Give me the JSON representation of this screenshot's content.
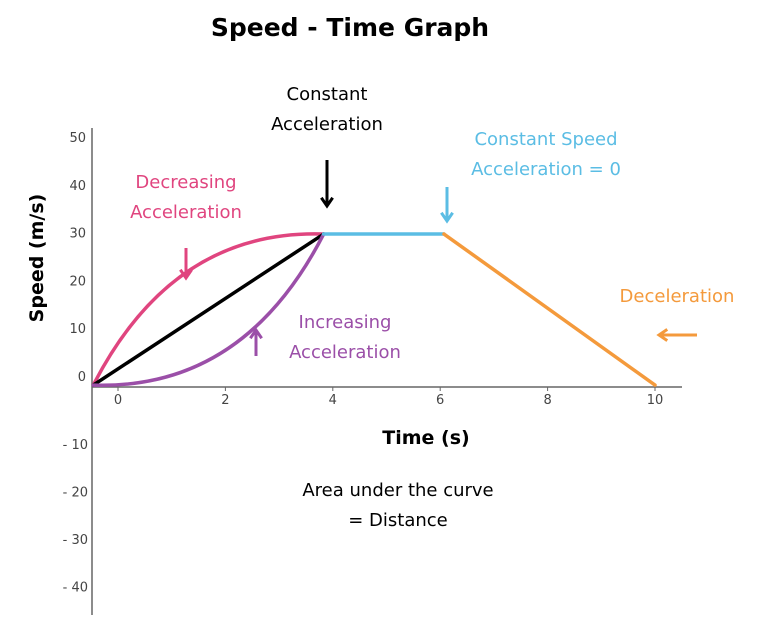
{
  "chart_data": {
    "type": "line",
    "title": "Speed - Time Graph",
    "xlabel": "Time (s)",
    "ylabel": "Speed (m/s)",
    "xlim": [
      -0.5,
      10.5
    ],
    "ylim": [
      -2,
      52
    ],
    "x_ticks": [
      "0",
      "2",
      "4",
      "6",
      "8",
      "10"
    ],
    "x_tick_values": [
      0,
      2,
      4,
      6,
      8,
      10
    ],
    "y_ticks": [
      "0",
      "10",
      "20",
      "30",
      "40",
      "50"
    ],
    "y_tick_values": [
      0,
      10,
      20,
      30,
      40,
      50
    ],
    "lower_labels": [
      "- 10",
      "- 20",
      "- 30",
      "- 40"
    ],
    "grid": false,
    "series": [
      {
        "key": "decreasing",
        "color": "#e0457f",
        "kind": "curve-concave",
        "points": [
          [
            -0.46,
            -1.9
          ],
          [
            3.83,
            29.7
          ]
        ]
      },
      {
        "key": "constant",
        "color": "#000000",
        "kind": "straight",
        "points": [
          [
            -0.46,
            -1.9
          ],
          [
            3.83,
            29.7
          ]
        ]
      },
      {
        "key": "increasing",
        "color": "#9b4fa8",
        "kind": "curve-convex",
        "points": [
          [
            -0.46,
            -1.9
          ],
          [
            3.83,
            29.7
          ]
        ]
      },
      {
        "key": "constant_speed",
        "color": "#5bbde4",
        "kind": "straight",
        "points": [
          [
            3.83,
            29.7
          ],
          [
            6.07,
            29.7
          ]
        ]
      },
      {
        "key": "deceleration",
        "color": "#f49a3c",
        "kind": "straight",
        "points": [
          [
            6.07,
            29.7
          ],
          [
            10,
            -1.9
          ]
        ]
      }
    ],
    "annotations": {
      "constant_acceleration": {
        "lines": [
          "Constant",
          "Acceleration"
        ],
        "color": "#000000"
      },
      "decreasing_acceleration": {
        "lines": [
          "Decreasing",
          "Acceleration"
        ],
        "color": "#e0457f"
      },
      "increasing_acceleration": {
        "lines": [
          "Increasing",
          "Acceleration"
        ],
        "color": "#9b4fa8"
      },
      "constant_speed": {
        "lines": [
          "Constant Speed",
          "Acceleration = 0"
        ],
        "color": "#5bbde4"
      },
      "deceleration": {
        "lines": [
          "Deceleration"
        ],
        "color": "#f49a3c"
      },
      "area": {
        "lines": [
          "Area under the curve",
          "= Distance"
        ],
        "color": "#000000"
      }
    }
  }
}
